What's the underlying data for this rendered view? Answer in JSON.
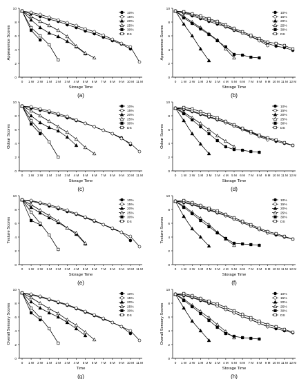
{
  "figure": {
    "panel_labels": [
      "(a)",
      "(b)",
      "(c)",
      "(d)",
      "(e)",
      "(f)",
      "(g)",
      "(h)"
    ]
  },
  "chart_data": [
    {
      "id": "a",
      "type": "line",
      "ylabel": "Appearence Scores",
      "xlabel": "Storage Time",
      "ylim": [
        0,
        10
      ],
      "categories": [
        "0",
        "1 W",
        "2 W",
        "1 M",
        "2 M",
        "3 M",
        "4 M",
        "5 M",
        "6 M",
        "7 M",
        "8 M",
        "9 M",
        "10 M",
        "11 M"
      ],
      "series": [
        {
          "name": "10%",
          "values": [
            9.6,
            9.2,
            8.8,
            8.4,
            8.1,
            7.6,
            7.2,
            6.7,
            6.3,
            5.8,
            5.3,
            4.8,
            4.1,
            null
          ]
        },
        {
          "name": "15%",
          "values": [
            9.6,
            9.4,
            9.1,
            8.7,
            8.3,
            7.9,
            7.5,
            7.0,
            6.6,
            6.1,
            5.5,
            4.9,
            4.4,
            2.2
          ]
        },
        {
          "name": "20%",
          "values": [
            9.6,
            8.3,
            7.2,
            6.4,
            5.9,
            5.2,
            4.4,
            3.4,
            null,
            null,
            null,
            null,
            null,
            null
          ]
        },
        {
          "name": "25%",
          "values": [
            9.6,
            8.8,
            8.1,
            7.5,
            6.8,
            5.9,
            4.5,
            3.5,
            2.8,
            null,
            null,
            null,
            null,
            null
          ]
        },
        {
          "name": "30%",
          "values": [
            9.6,
            6.8,
            5.4,
            null,
            null,
            null,
            null,
            null,
            null,
            null,
            null,
            null,
            null,
            null
          ]
        },
        {
          "name": "DS",
          "values": [
            9.6,
            7.2,
            6.0,
            4.7,
            2.5,
            null,
            null,
            null,
            null,
            null,
            null,
            null,
            null,
            null
          ]
        }
      ]
    },
    {
      "id": "b",
      "type": "line",
      "ylabel": "Appearence Scores",
      "xlabel": "Storage Time",
      "ylim": [
        0,
        10
      ],
      "categories": [
        "0",
        "1 W",
        "2 W",
        "1 M",
        "2 M",
        "3 M",
        "4 M",
        "5 M",
        "6 M",
        "7 M",
        "8 M",
        "9 M",
        "10 M",
        "11 M",
        "12 M"
      ],
      "series": [
        {
          "name": "10%",
          "values": [
            9.6,
            9.3,
            8.9,
            8.5,
            8.1,
            7.7,
            7.3,
            6.8,
            6.4,
            5.9,
            5.4,
            4.9,
            4.5,
            4.3,
            3.9
          ]
        },
        {
          "name": "15%",
          "values": [
            9.6,
            9.4,
            9.1,
            8.7,
            8.3,
            7.9,
            7.4,
            6.9,
            6.4,
            5.9,
            5.3,
            4.6,
            null,
            null,
            null
          ]
        },
        {
          "name": "20%",
          "values": [
            9.6,
            7.7,
            6.0,
            4.1,
            2.4,
            null,
            null,
            null,
            null,
            null,
            null,
            null,
            null,
            null,
            null
          ]
        },
        {
          "name": "25%",
          "values": [
            9.6,
            8.8,
            8.0,
            7.2,
            6.3,
            5.4,
            4.1,
            2.8,
            null,
            null,
            null,
            null,
            null,
            null,
            null
          ]
        },
        {
          "name": "30%",
          "values": [
            9.6,
            8.6,
            7.8,
            7.0,
            6.2,
            5.3,
            4.4,
            3.3,
            3.2,
            2.9,
            2.8,
            null,
            null,
            null,
            null
          ]
        },
        {
          "name": "DS",
          "values": [
            9.6,
            9.5,
            9.2,
            8.9,
            8.5,
            8.1,
            7.6,
            7.1,
            6.6,
            6.1,
            5.6,
            5.1,
            4.9,
            4.6,
            4.1
          ]
        }
      ]
    },
    {
      "id": "c",
      "type": "line",
      "ylabel": "Odour Scores",
      "xlabel": "Storage Time",
      "ylim": [
        0,
        10
      ],
      "categories": [
        "0",
        "1 W",
        "2 W",
        "1 M",
        "2 M",
        "3 M",
        "4 M",
        "5 M",
        "6 M",
        "7 M",
        "8 M",
        "9 M",
        "10 M",
        "11 M"
      ],
      "series": [
        {
          "name": "10%",
          "values": [
            9.4,
            9.1,
            8.8,
            8.5,
            8.1,
            7.7,
            7.3,
            6.9,
            6.4,
            5.9,
            5.4,
            4.8,
            3.8,
            null
          ]
        },
        {
          "name": "15%",
          "values": [
            9.4,
            9.3,
            9.0,
            8.7,
            8.3,
            7.9,
            7.4,
            6.9,
            6.4,
            5.9,
            5.4,
            4.7,
            4.0,
            2.8
          ]
        },
        {
          "name": "20%",
          "values": [
            9.4,
            8.0,
            7.0,
            6.3,
            5.8,
            4.9,
            3.7,
            null,
            null,
            null,
            null,
            null,
            null,
            null
          ]
        },
        {
          "name": "25%",
          "values": [
            9.4,
            8.7,
            8.0,
            7.2,
            6.4,
            5.6,
            4.6,
            3.4,
            2.5,
            null,
            null,
            null,
            null,
            null
          ]
        },
        {
          "name": "30%",
          "values": [
            9.4,
            6.8,
            5.4,
            null,
            null,
            null,
            null,
            null,
            null,
            null,
            null,
            null,
            null,
            null
          ]
        },
        {
          "name": "DS",
          "values": [
            9.4,
            7.3,
            5.8,
            4.2,
            2.0,
            null,
            null,
            null,
            null,
            null,
            null,
            null,
            null,
            null
          ]
        }
      ]
    },
    {
      "id": "d",
      "type": "line",
      "ylabel": "Odour Scores",
      "xlabel": "Storage Time",
      "ylim": [
        0,
        10
      ],
      "categories": [
        "0",
        "1 W",
        "2 W",
        "1 M",
        "2 M",
        "3 M",
        "4 M",
        "5 M",
        "6 M",
        "7 M",
        "8 M",
        "9 M",
        "10 M",
        "11 M",
        "12 M"
      ],
      "series": [
        {
          "name": "10%",
          "values": [
            9.1,
            8.9,
            8.6,
            8.2,
            7.8,
            7.4,
            7.0,
            6.5,
            6.1,
            5.6,
            5.1,
            4.7,
            4.3,
            4.0,
            3.7
          ]
        },
        {
          "name": "15%",
          "values": [
            9.1,
            9.0,
            8.7,
            8.3,
            7.9,
            7.5,
            7.0,
            6.5,
            6.0,
            5.5,
            5.0,
            4.5,
            null,
            null,
            null
          ]
        },
        {
          "name": "20%",
          "values": [
            9.1,
            7.3,
            5.4,
            3.9,
            2.5,
            null,
            null,
            null,
            null,
            null,
            null,
            null,
            null,
            null,
            null
          ]
        },
        {
          "name": "25%",
          "values": [
            9.1,
            8.5,
            7.7,
            6.9,
            6.0,
            5.1,
            4.3,
            3.5,
            null,
            null,
            null,
            null,
            null,
            null,
            null
          ]
        },
        {
          "name": "30%",
          "values": [
            9.1,
            8.3,
            7.4,
            6.4,
            5.4,
            4.4,
            3.5,
            3.1,
            3.0,
            2.8,
            2.7,
            null,
            null,
            null,
            null
          ]
        },
        {
          "name": "DS",
          "values": [
            9.1,
            9.2,
            9.0,
            8.6,
            8.2,
            7.7,
            7.2,
            6.7,
            6.2,
            5.7,
            5.2,
            4.8,
            4.5,
            4.1,
            3.7
          ]
        }
      ]
    },
    {
      "id": "e",
      "type": "line",
      "ylabel": "Texture Scores",
      "xlabel": "Storage Time",
      "ylim": [
        0,
        10
      ],
      "categories": [
        "0",
        "1 W",
        "2 W",
        "1 M",
        "2 M",
        "3 M",
        "4 M",
        "5 M",
        "6 M",
        "7 M",
        "8 M",
        "9 M",
        "10 M",
        "11 M"
      ],
      "series": [
        {
          "name": "10%",
          "values": [
            9.4,
            9.2,
            8.9,
            8.5,
            8.1,
            7.7,
            7.3,
            6.8,
            6.3,
            5.8,
            5.2,
            4.7,
            3.5,
            null
          ]
        },
        {
          "name": "15%",
          "values": [
            9.4,
            9.3,
            9.0,
            8.7,
            8.3,
            7.9,
            7.4,
            6.9,
            6.4,
            5.8,
            5.3,
            4.7,
            4.1,
            2.6
          ]
        },
        {
          "name": "20%",
          "values": [
            9.4,
            8.3,
            7.5,
            6.8,
            6.1,
            5.3,
            4.4,
            3.0,
            null,
            null,
            null,
            null,
            null,
            null
          ]
        },
        {
          "name": "25%",
          "values": [
            9.4,
            8.7,
            7.9,
            7.1,
            6.3,
            5.3,
            4.6,
            3.1,
            null,
            null,
            null,
            null,
            null,
            null
          ]
        },
        {
          "name": "30%",
          "values": [
            9.4,
            6.4,
            5.8,
            null,
            null,
            null,
            null,
            null,
            null,
            null,
            null,
            null,
            null,
            null
          ]
        },
        {
          "name": "DS",
          "values": [
            9.4,
            7.6,
            6.0,
            4.3,
            2.2,
            null,
            null,
            null,
            null,
            null,
            null,
            null,
            null,
            null
          ]
        }
      ]
    },
    {
      "id": "f",
      "type": "line",
      "ylabel": "Texture Scores",
      "xlabel": "Storage Time",
      "ylim": [
        0,
        10
      ],
      "categories": [
        "0",
        "1 W",
        "2 W",
        "1 M",
        "2 M",
        "3 M",
        "4 M",
        "5 M",
        "6 M",
        "7 M",
        "8 M",
        "9 M",
        "10 M",
        "11 M",
        "12 M"
      ],
      "series": [
        {
          "name": "10%",
          "values": [
            9.2,
            9.0,
            8.7,
            8.3,
            7.9,
            7.5,
            7.1,
            6.6,
            6.1,
            5.6,
            5.1,
            4.6,
            4.3,
            4.0,
            3.7
          ]
        },
        {
          "name": "15%",
          "values": [
            9.2,
            9.1,
            8.8,
            8.4,
            8.0,
            7.6,
            7.1,
            6.6,
            6.1,
            5.6,
            5.1,
            4.6,
            null,
            null,
            null
          ]
        },
        {
          "name": "20%",
          "values": [
            9.2,
            7.0,
            5.2,
            4.0,
            2.7,
            null,
            null,
            null,
            null,
            null,
            null,
            null,
            null,
            null,
            null
          ]
        },
        {
          "name": "25%",
          "values": [
            9.2,
            8.5,
            7.6,
            6.7,
            5.8,
            4.7,
            3.7,
            2.8,
            null,
            null,
            null,
            null,
            null,
            null,
            null
          ]
        },
        {
          "name": "30%",
          "values": [
            9.2,
            8.3,
            7.4,
            6.4,
            5.5,
            4.6,
            3.8,
            3.1,
            3.0,
            2.9,
            2.8,
            null,
            null,
            null,
            null
          ]
        },
        {
          "name": "DS",
          "values": [
            9.2,
            9.3,
            9.0,
            8.6,
            8.2,
            7.8,
            7.3,
            6.8,
            6.3,
            5.8,
            5.3,
            4.8,
            4.5,
            4.1,
            3.7
          ]
        }
      ]
    },
    {
      "id": "g",
      "type": "line",
      "ylabel": "Overall Sensory Scores",
      "xlabel": "Time",
      "ylim": [
        0,
        10
      ],
      "categories": [
        "0",
        "1 W",
        "2 W",
        "1 M",
        "2 M",
        "3 M",
        "4 M",
        "5 M",
        "6 M",
        "7 M",
        "8 M",
        "9 M",
        "10 M",
        "11 M"
      ],
      "series": [
        {
          "name": "10%",
          "values": [
            9.5,
            9.2,
            8.9,
            8.5,
            8.1,
            7.7,
            7.2,
            6.7,
            6.2,
            5.7,
            5.2,
            4.6,
            3.6,
            null
          ]
        },
        {
          "name": "15%",
          "values": [
            9.5,
            9.3,
            9.0,
            8.6,
            8.2,
            7.8,
            7.3,
            6.8,
            6.3,
            5.8,
            5.2,
            4.6,
            4.0,
            2.6
          ]
        },
        {
          "name": "20%",
          "values": [
            9.5,
            8.2,
            7.3,
            6.6,
            6.0,
            5.2,
            4.3,
            3.3,
            null,
            null,
            null,
            null,
            null,
            null
          ]
        },
        {
          "name": "25%",
          "values": [
            9.5,
            8.8,
            8.0,
            7.2,
            6.5,
            5.6,
            4.8,
            3.8,
            2.7,
            null,
            null,
            null,
            null,
            null
          ]
        },
        {
          "name": "30%",
          "values": [
            9.5,
            6.6,
            5.6,
            null,
            null,
            null,
            null,
            null,
            null,
            null,
            null,
            null,
            null,
            null
          ]
        },
        {
          "name": "DS",
          "values": [
            9.5,
            7.3,
            5.9,
            4.3,
            2.2,
            null,
            null,
            null,
            null,
            null,
            null,
            null,
            null,
            null
          ]
        }
      ]
    },
    {
      "id": "h",
      "type": "line",
      "ylabel": "Overall Sensory Scores",
      "xlabel": "Storage Time",
      "ylim": [
        0,
        10
      ],
      "categories": [
        "0",
        "1 W",
        "2 W",
        "1 M",
        "2 M",
        "3 M",
        "4 M",
        "5 M",
        "6 M",
        "7 M",
        "8 M",
        "9 M",
        "10 M",
        "11 M",
        "12 M"
      ],
      "series": [
        {
          "name": "10%",
          "values": [
            9.3,
            9.1,
            8.8,
            8.4,
            8.0,
            7.6,
            7.1,
            6.6,
            6.1,
            5.6,
            5.1,
            4.6,
            4.3,
            4.0,
            3.7
          ]
        },
        {
          "name": "15%",
          "values": [
            9.3,
            9.2,
            8.9,
            8.5,
            8.1,
            7.6,
            7.1,
            6.6,
            6.1,
            5.6,
            5.1,
            4.6,
            null,
            null,
            null
          ]
        },
        {
          "name": "20%",
          "values": [
            9.3,
            7.3,
            5.4,
            4.0,
            2.6,
            null,
            null,
            null,
            null,
            null,
            null,
            null,
            null,
            null,
            null
          ]
        },
        {
          "name": "25%",
          "values": [
            9.3,
            8.6,
            7.7,
            6.8,
            5.9,
            4.9,
            3.9,
            3.0,
            null,
            null,
            null,
            null,
            null,
            null,
            null
          ]
        },
        {
          "name": "30%",
          "values": [
            9.3,
            8.4,
            7.5,
            6.5,
            5.5,
            4.5,
            3.6,
            3.2,
            3.0,
            2.9,
            2.8,
            null,
            null,
            null,
            null
          ]
        },
        {
          "name": "DS",
          "values": [
            9.3,
            9.4,
            9.1,
            8.7,
            8.3,
            7.9,
            7.4,
            6.9,
            6.4,
            5.9,
            5.4,
            4.9,
            4.6,
            4.2,
            3.8
          ]
        }
      ]
    }
  ]
}
